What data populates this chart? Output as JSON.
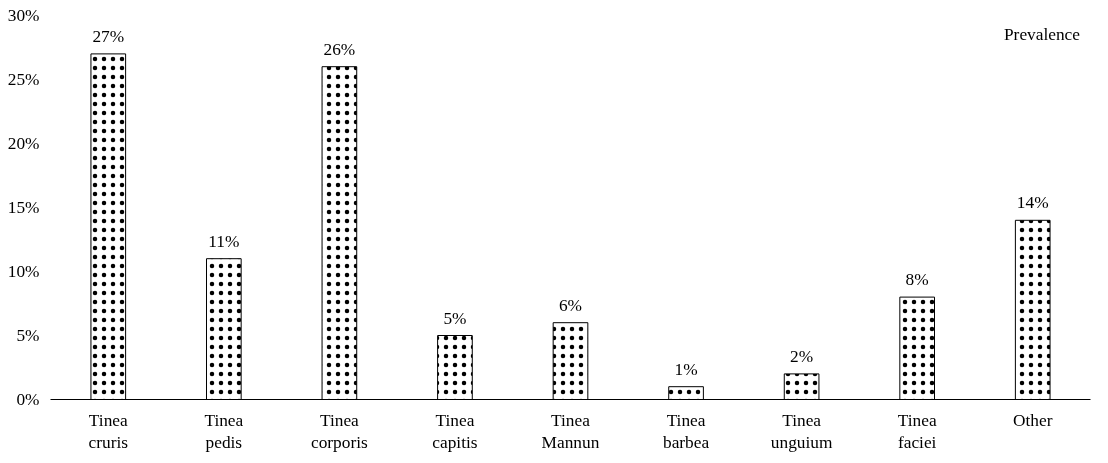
{
  "chart_data": {
    "type": "bar",
    "categories": [
      "Tinea\ncruris",
      "Tinea\npedis",
      "Tinea\ncorporis",
      "Tinea\ncapitis",
      "Tinea\nMannun",
      "Tinea\nbarbea",
      "Tinea\nunguium",
      "Tinea\nfaciei",
      "Other"
    ],
    "series": [
      {
        "name": "Prevalence",
        "color": "#ffffff",
        "values": [
          27,
          11,
          26,
          5,
          6,
          1,
          2,
          8,
          14
        ]
      }
    ],
    "value_labels": [
      "27%",
      "11%",
      "26%",
      "5%",
      "6%",
      "1%",
      "2%",
      "8%",
      "14%"
    ],
    "ylim": [
      0,
      30
    ],
    "yticks": [
      {
        "value": 0,
        "label": "0%"
      },
      {
        "value": 5,
        "label": "5%"
      },
      {
        "value": 10,
        "label": "10%"
      },
      {
        "value": 15,
        "label": "15%"
      },
      {
        "value": 20,
        "label": "20%"
      },
      {
        "value": 25,
        "label": "25%"
      },
      {
        "value": 30,
        "label": "30%"
      }
    ],
    "grid": false,
    "legend": "top right"
  }
}
